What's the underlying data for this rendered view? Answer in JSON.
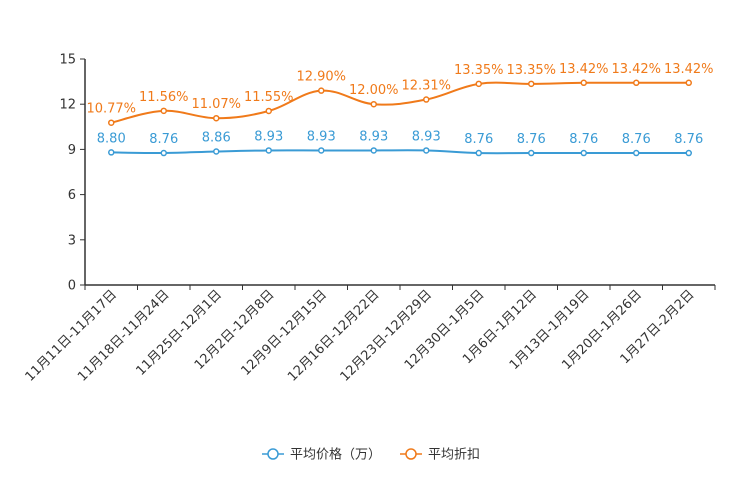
{
  "chart_data": {
    "type": "line",
    "categories": [
      "11月11日-11月17日",
      "11月18日-11月24日",
      "11月25日-12月1日",
      "12月2日-12月8日",
      "12月9日-12月15日",
      "12月16日-12月22日",
      "12月23日-12月29日",
      "12月30日-1月5日",
      "1月6日-1月12日",
      "1月13日-1月19日",
      "1月20日-1月26日",
      "1月27日-2月2日"
    ],
    "ylim": [
      0,
      15
    ],
    "yticks": [
      "0",
      "3",
      "6",
      "9",
      "12",
      "15"
    ],
    "series": [
      {
        "name": "平均价格（万）",
        "color": "#3a9bd5",
        "values": [
          8.8,
          8.76,
          8.86,
          8.93,
          8.93,
          8.93,
          8.93,
          8.76,
          8.76,
          8.76,
          8.76,
          8.76
        ],
        "labels": [
          "8.80",
          "8.76",
          "8.86",
          "8.93",
          "8.93",
          "8.93",
          "8.93",
          "8.76",
          "8.76",
          "8.76",
          "8.76",
          "8.76"
        ]
      },
      {
        "name": "平均折扣",
        "color": "#f07a1a",
        "values": [
          10.77,
          11.56,
          11.07,
          11.55,
          12.9,
          12.0,
          12.31,
          13.35,
          13.35,
          13.42,
          13.42,
          13.42
        ],
        "labels": [
          "10.77%",
          "11.56%",
          "11.07%",
          "11.55%",
          "12.90%",
          "12.00%",
          "12.31%",
          "13.35%",
          "13.35%",
          "13.42%",
          "13.42%",
          "13.42%"
        ]
      }
    ]
  }
}
